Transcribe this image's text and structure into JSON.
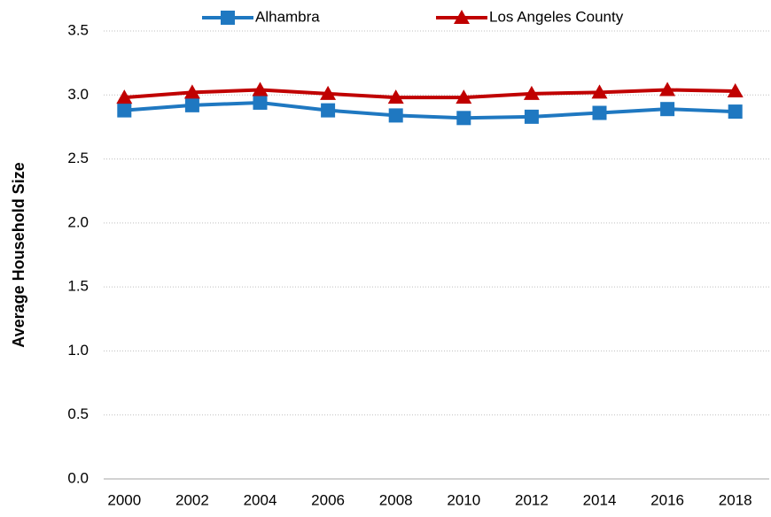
{
  "chart_data": {
    "type": "line",
    "y_label": "Average Household Size",
    "categories": [
      "2000",
      "2002",
      "2004",
      "2006",
      "2008",
      "2010",
      "2012",
      "2014",
      "2016",
      "2018"
    ],
    "series": [
      {
        "name": "Alhambra",
        "color": "#1f78c1",
        "marker": "square",
        "values": [
          2.88,
          2.92,
          2.94,
          2.88,
          2.84,
          2.82,
          2.83,
          2.86,
          2.89,
          2.87
        ]
      },
      {
        "name": "Los Angeles County",
        "color": "#c00000",
        "marker": "triangle",
        "values": [
          2.98,
          3.02,
          3.04,
          3.01,
          2.98,
          2.98,
          3.01,
          3.02,
          3.04,
          3.03
        ]
      }
    ],
    "ylim": [
      0,
      3.5
    ],
    "yticks": [
      {
        "value": 0,
        "label": "0.0"
      },
      0.5,
      {
        "value": 1,
        "label": "1.0"
      },
      1.5,
      {
        "value": 2,
        "label": "2.0"
      },
      2.5,
      {
        "value": 3,
        "label": "3.0"
      },
      3.5
    ],
    "grid": true,
    "legend": "top"
  }
}
